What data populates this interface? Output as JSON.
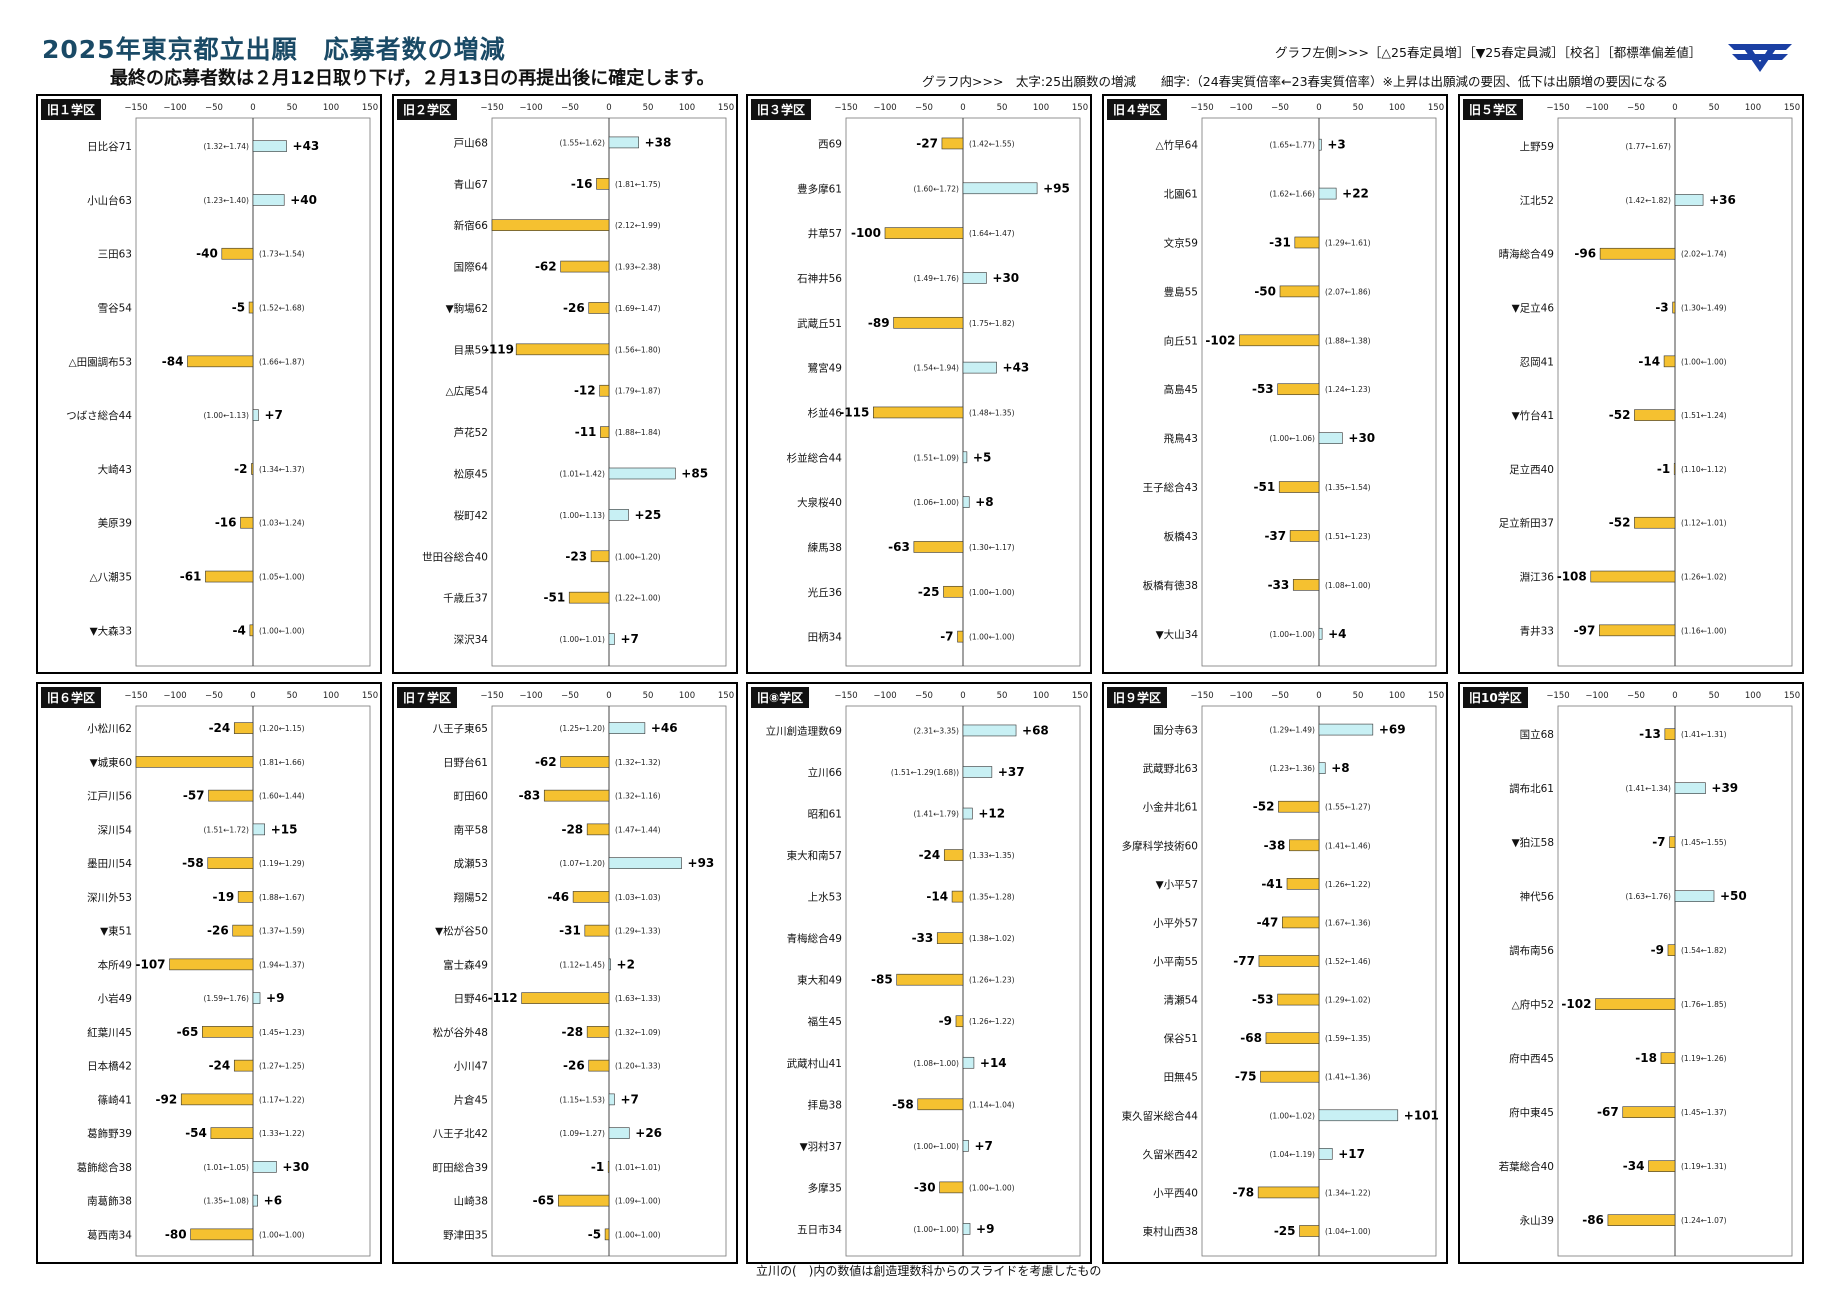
{
  "header": {
    "title": "2025年東京都立出願　応募者数の増減",
    "subtitle": "最終の応募者数は２月12日取り下げ，２月13日の再提出後に確定します。",
    "legend_line1": "グラフ左側>>>［△25春定員増］［▼25春定員減］［校名］［都標準偏差値］",
    "legend_line2": "グラフ内>>>　太字:25出願数の増減　　細字:（24春実質倍率←23春実質倍率）※上昇は出願減の要因、低下は出願増の要因になる"
  },
  "footnote": "立川の(　)内の数値は創造理数科からのスライドを考慮したもの",
  "colors": {
    "negative_bar": "#f5c130",
    "positive_bar": "#c8f0f4",
    "bar_border": "#333333",
    "title": "#1a4a66",
    "logo": "#1a3fa3"
  },
  "icons": {
    "logo": "logo-icon"
  },
  "chart_data": [
    {
      "type": "bar",
      "region": "旧１学区",
      "ticks": [
        -150,
        -100,
        -50,
        0,
        50,
        100,
        150
      ],
      "xlim": [
        -150,
        150
      ],
      "orientation": "horizontal",
      "items": [
        {
          "name": "日比谷71",
          "value": 43,
          "label": "+43",
          "ratio": "(1.32←1.74)"
        },
        {
          "name": "小山台63",
          "value": 40,
          "label": "+40",
          "ratio": "(1.23←1.40)"
        },
        {
          "name": "三田63",
          "value": -40,
          "label": "-40",
          "ratio": "(1.73←1.54)"
        },
        {
          "name": "雪谷54",
          "value": -5,
          "label": "-5",
          "ratio": "(1.52←1.68)"
        },
        {
          "name": "△田園調布53",
          "value": -84,
          "label": "-84",
          "ratio": "(1.66←1.87)"
        },
        {
          "name": "つばさ総合44",
          "value": 7,
          "label": "+7",
          "ratio": "(1.00←1.13)"
        },
        {
          "name": "大崎43",
          "value": -2,
          "label": "-2",
          "ratio": "(1.34←1.37)"
        },
        {
          "name": "美原39",
          "value": -16,
          "label": "-16",
          "ratio": "(1.03←1.24)"
        },
        {
          "name": "△八潮35",
          "value": -61,
          "label": "-61",
          "ratio": "(1.05←1.00)"
        },
        {
          "name": "▼大森33",
          "value": -4,
          "label": "-4",
          "ratio": "(1.00←1.00)"
        }
      ]
    },
    {
      "type": "bar",
      "region": "旧２学区",
      "ticks": [
        -150,
        -100,
        -50,
        0,
        50,
        100,
        150
      ],
      "xlim": [
        -150,
        150
      ],
      "orientation": "horizontal",
      "items": [
        {
          "name": "戸山68",
          "value": 38,
          "label": "+38",
          "ratio": "(1.55←1.62)"
        },
        {
          "name": "青山67",
          "value": -16,
          "label": "-16",
          "ratio": "(1.81←1.75)"
        },
        {
          "name": "新宿66",
          "value": -150,
          "label": "",
          "ratio": "(2.12←1.99)"
        },
        {
          "name": "国際64",
          "value": -62,
          "label": "-62",
          "ratio": "(1.93←2.38)"
        },
        {
          "name": "▼駒場62",
          "value": -26,
          "label": "-26",
          "ratio": "(1.69←1.47)"
        },
        {
          "name": "目黒59",
          "value": -119,
          "label": "-119",
          "ratio": "(1.56←1.80)"
        },
        {
          "name": "△広尾54",
          "value": -12,
          "label": "-12",
          "ratio": "(1.79←1.87)"
        },
        {
          "name": "芦花52",
          "value": -11,
          "label": "-11",
          "ratio": "(1.88←1.84)"
        },
        {
          "name": "松原45",
          "value": 85,
          "label": "+85",
          "ratio": "(1.01←1.42)"
        },
        {
          "name": "桜町42",
          "value": 25,
          "label": "+25",
          "ratio": "(1.00←1.13)"
        },
        {
          "name": "世田谷総合40",
          "value": -23,
          "label": "-23",
          "ratio": "(1.00←1.20)"
        },
        {
          "name": "千歳丘37",
          "value": -51,
          "label": "-51",
          "ratio": "(1.22←1.00)"
        },
        {
          "name": "深沢34",
          "value": 7,
          "label": "+7",
          "ratio": "(1.00←1.01)"
        }
      ]
    },
    {
      "type": "bar",
      "region": "旧３学区",
      "ticks": [
        -150,
        -100,
        -50,
        0,
        50,
        100,
        150
      ],
      "xlim": [
        -150,
        150
      ],
      "orientation": "horizontal",
      "items": [
        {
          "name": "西69",
          "value": -27,
          "label": "-27",
          "ratio": "(1.42←1.55)"
        },
        {
          "name": "豊多摩61",
          "value": 95,
          "label": "+95",
          "ratio": "(1.60←1.72)"
        },
        {
          "name": "井草57",
          "value": -100,
          "label": "-100",
          "ratio": "(1.64←1.47)"
        },
        {
          "name": "石神井56",
          "value": 30,
          "label": "+30",
          "ratio": "(1.49←1.76)"
        },
        {
          "name": "武蔵丘51",
          "value": -89,
          "label": "-89",
          "ratio": "(1.75←1.82)"
        },
        {
          "name": "鷺宮49",
          "value": 43,
          "label": "+43",
          "ratio": "(1.54←1.94)"
        },
        {
          "name": "杉並46",
          "value": -115,
          "label": "-115",
          "ratio": "(1.48←1.35)"
        },
        {
          "name": "杉並総合44",
          "value": 5,
          "label": "+5",
          "ratio": "(1.51←1.09)"
        },
        {
          "name": "大泉桜40",
          "value": 8,
          "label": "+8",
          "ratio": "(1.06←1.00)"
        },
        {
          "name": "練馬38",
          "value": -63,
          "label": "-63",
          "ratio": "(1.30←1.17)"
        },
        {
          "name": "光丘36",
          "value": -25,
          "label": "-25",
          "ratio": "(1.00←1.00)"
        },
        {
          "name": "田柄34",
          "value": -7,
          "label": "-7",
          "ratio": "(1.00←1.00)"
        }
      ]
    },
    {
      "type": "bar",
      "region": "旧４学区",
      "ticks": [
        -150,
        -100,
        -50,
        0,
        50,
        100,
        150
      ],
      "xlim": [
        -150,
        150
      ],
      "orientation": "horizontal",
      "items": [
        {
          "name": "△竹早64",
          "value": 3,
          "label": "+3",
          "ratio": "(1.65←1.77)"
        },
        {
          "name": "北園61",
          "value": 22,
          "label": "+22",
          "ratio": "(1.62←1.66)"
        },
        {
          "name": "文京59",
          "value": -31,
          "label": "-31",
          "ratio": "(1.29←1.61)"
        },
        {
          "name": "豊島55",
          "value": -50,
          "label": "-50",
          "ratio": "(2.07←1.86)"
        },
        {
          "name": "向丘51",
          "value": -102,
          "label": "-102",
          "ratio": "(1.88←1.38)"
        },
        {
          "name": "高島45",
          "value": -53,
          "label": "-53",
          "ratio": "(1.24←1.23)"
        },
        {
          "name": "飛鳥43",
          "value": 30,
          "label": "+30",
          "ratio": "(1.00←1.06)"
        },
        {
          "name": "王子総合43",
          "value": -51,
          "label": "-51",
          "ratio": "(1.35←1.54)"
        },
        {
          "name": "板橋43",
          "value": -37,
          "label": "-37",
          "ratio": "(1.51←1.23)"
        },
        {
          "name": "板橋有徳38",
          "value": -33,
          "label": "-33",
          "ratio": "(1.08←1.00)"
        },
        {
          "name": "▼大山34",
          "value": 4,
          "label": "+4",
          "ratio": "(1.00←1.00)"
        }
      ]
    },
    {
      "type": "bar",
      "region": "旧５学区",
      "ticks": [
        -150,
        -100,
        -50,
        0,
        50,
        100,
        150
      ],
      "xlim": [
        -150,
        150
      ],
      "orientation": "horizontal",
      "items": [
        {
          "name": "上野59",
          "value": 0,
          "label": "",
          "ratio": "(1.77←1.67)"
        },
        {
          "name": "江北52",
          "value": 36,
          "label": "+36",
          "ratio": "(1.42←1.82)"
        },
        {
          "name": "晴海総合49",
          "value": -96,
          "label": "-96",
          "ratio": "(2.02←1.74)"
        },
        {
          "name": "▼足立46",
          "value": -3,
          "label": "-3",
          "ratio": "(1.30←1.49)"
        },
        {
          "name": "忍岡41",
          "value": -14,
          "label": "-14",
          "ratio": "(1.00←1.00)"
        },
        {
          "name": "▼竹台41",
          "value": -52,
          "label": "-52",
          "ratio": "(1.51←1.24)"
        },
        {
          "name": "足立西40",
          "value": -1,
          "label": "-1",
          "ratio": "(1.10←1.12)"
        },
        {
          "name": "足立新田37",
          "value": -52,
          "label": "-52",
          "ratio": "(1.12←1.01)"
        },
        {
          "name": "淵江36",
          "value": -108,
          "label": "-108",
          "ratio": "(1.26←1.02)"
        },
        {
          "name": "青井33",
          "value": -97,
          "label": "-97",
          "ratio": "(1.16←1.00)"
        }
      ]
    },
    {
      "type": "bar",
      "region": "旧６学区",
      "ticks": [
        -150,
        -100,
        -50,
        0,
        50,
        100,
        150
      ],
      "xlim": [
        -150,
        150
      ],
      "orientation": "horizontal",
      "items": [
        {
          "name": "小松川62",
          "value": -24,
          "label": "-24",
          "ratio": "(1.20←1.15)"
        },
        {
          "name": "▼城東60",
          "value": -150,
          "label": "",
          "ratio": "(1.81←1.66)"
        },
        {
          "name": "江戸川56",
          "value": -57,
          "label": "-57",
          "ratio": "(1.60←1.44)"
        },
        {
          "name": "深川54",
          "value": 15,
          "label": "+15",
          "ratio": "(1.51←1.72)"
        },
        {
          "name": "墨田川54",
          "value": -58,
          "label": "-58",
          "ratio": "(1.19←1.29)"
        },
        {
          "name": "深川外53",
          "value": -19,
          "label": "-19",
          "ratio": "(1.88←1.67)"
        },
        {
          "name": "▼東51",
          "value": -26,
          "label": "-26",
          "ratio": "(1.37←1.59)"
        },
        {
          "name": "本所49",
          "value": -107,
          "label": "-107",
          "ratio": "(1.94←1.37)"
        },
        {
          "name": "小岩49",
          "value": 9,
          "label": "+9",
          "ratio": "(1.59←1.76)"
        },
        {
          "name": "紅葉川45",
          "value": -65,
          "label": "-65",
          "ratio": "(1.45←1.23)"
        },
        {
          "name": "日本橋42",
          "value": -24,
          "label": "-24",
          "ratio": "(1.27←1.25)"
        },
        {
          "name": "篠崎41",
          "value": -92,
          "label": "-92",
          "ratio": "(1.17←1.22)"
        },
        {
          "name": "葛飾野39",
          "value": -54,
          "label": "-54",
          "ratio": "(1.33←1.22)"
        },
        {
          "name": "葛飾総合38",
          "value": 30,
          "label": "+30",
          "ratio": "(1.01←1.05)"
        },
        {
          "name": "南葛飾38",
          "value": 6,
          "label": "+6",
          "ratio": "(1.35←1.08)"
        },
        {
          "name": "葛西南34",
          "value": -80,
          "label": "-80",
          "ratio": "(1.00←1.00)"
        }
      ]
    },
    {
      "type": "bar",
      "region": "旧７学区",
      "ticks": [
        -150,
        -100,
        -50,
        0,
        50,
        100,
        150
      ],
      "xlim": [
        -150,
        150
      ],
      "orientation": "horizontal",
      "items": [
        {
          "name": "八王子東65",
          "value": 46,
          "label": "+46",
          "ratio": "(1.25←1.20)"
        },
        {
          "name": "日野台61",
          "value": -62,
          "label": "-62",
          "ratio": "(1.32←1.32)"
        },
        {
          "name": "町田60",
          "value": -83,
          "label": "-83",
          "ratio": "(1.32←1.16)"
        },
        {
          "name": "南平58",
          "value": -28,
          "label": "-28",
          "ratio": "(1.47←1.44)"
        },
        {
          "name": "成瀬53",
          "value": 93,
          "label": "+93",
          "ratio": "(1.07←1.20)"
        },
        {
          "name": "翔陽52",
          "value": -46,
          "label": "-46",
          "ratio": "(1.03←1.03)"
        },
        {
          "name": "▼松が谷50",
          "value": -31,
          "label": "-31",
          "ratio": "(1.29←1.33)"
        },
        {
          "name": "富士森49",
          "value": 2,
          "label": "+2",
          "ratio": "(1.12←1.45)"
        },
        {
          "name": "日野46",
          "value": -112,
          "label": "-112",
          "ratio": "(1.63←1.33)"
        },
        {
          "name": "松が谷外48",
          "value": -28,
          "label": "-28",
          "ratio": "(1.32←1.09)"
        },
        {
          "name": "小川47",
          "value": -26,
          "label": "-26",
          "ratio": "(1.20←1.33)"
        },
        {
          "name": "片倉45",
          "value": 7,
          "label": "+7",
          "ratio": "(1.15←1.53)"
        },
        {
          "name": "八王子北42",
          "value": 26,
          "label": "+26",
          "ratio": "(1.09←1.27)"
        },
        {
          "name": "町田総合39",
          "value": -1,
          "label": "-1",
          "ratio": "(1.01←1.01)"
        },
        {
          "name": "山崎38",
          "value": -65,
          "label": "-65",
          "ratio": "(1.09←1.00)"
        },
        {
          "name": "野津田35",
          "value": -5,
          "label": "-5",
          "ratio": "(1.00←1.00)"
        }
      ]
    },
    {
      "type": "bar",
      "region": "旧⑧学区",
      "ticks": [
        -150,
        -100,
        -50,
        0,
        50,
        100,
        150
      ],
      "xlim": [
        -150,
        150
      ],
      "orientation": "horizontal",
      "items": [
        {
          "name": "立川創造理数69",
          "value": 68,
          "label": "+68",
          "ratio": "(2.31←3.35)"
        },
        {
          "name": "立川66",
          "value": 37,
          "label": "+37",
          "ratio": "(1.51←1.29(1.68))"
        },
        {
          "name": "昭和61",
          "value": 12,
          "label": "+12",
          "ratio": "(1.41←1.79)"
        },
        {
          "name": "東大和南57",
          "value": -24,
          "label": "-24",
          "ratio": "(1.33←1.35)"
        },
        {
          "name": "上水53",
          "value": -14,
          "label": "-14",
          "ratio": "(1.35←1.28)"
        },
        {
          "name": "青梅総合49",
          "value": -33,
          "label": "-33",
          "ratio": "(1.38←1.02)"
        },
        {
          "name": "東大和49",
          "value": -85,
          "label": "-85",
          "ratio": "(1.26←1.23)"
        },
        {
          "name": "福生45",
          "value": -9,
          "label": "-9",
          "ratio": "(1.26←1.22)"
        },
        {
          "name": "武蔵村山41",
          "value": 14,
          "label": "+14",
          "ratio": "(1.08←1.00)"
        },
        {
          "name": "拝島38",
          "value": -58,
          "label": "-58",
          "ratio": "(1.14←1.04)"
        },
        {
          "name": "▼羽村37",
          "value": 7,
          "label": "+7",
          "ratio": "(1.00←1.00)"
        },
        {
          "name": "多摩35",
          "value": -30,
          "label": "-30",
          "ratio": "(1.00←1.00)"
        },
        {
          "name": "五日市34",
          "value": 9,
          "label": "+9",
          "ratio": "(1.00←1.00)"
        }
      ]
    },
    {
      "type": "bar",
      "region": "旧９学区",
      "ticks": [
        -150,
        -100,
        -50,
        0,
        50,
        100,
        150
      ],
      "xlim": [
        -150,
        150
      ],
      "orientation": "horizontal",
      "items": [
        {
          "name": "国分寺63",
          "value": 69,
          "label": "+69",
          "ratio": "(1.29←1.49)"
        },
        {
          "name": "武蔵野北63",
          "value": 8,
          "label": "+8",
          "ratio": "(1.23←1.36)"
        },
        {
          "name": "小金井北61",
          "value": -52,
          "label": "-52",
          "ratio": "(1.55←1.27)"
        },
        {
          "name": "多摩科学技術60",
          "value": -38,
          "label": "-38",
          "ratio": "(1.41←1.46)"
        },
        {
          "name": "▼小平57",
          "value": -41,
          "label": "-41",
          "ratio": "(1.26←1.22)"
        },
        {
          "name": "小平外57",
          "value": -47,
          "label": "-47",
          "ratio": "(1.67←1.36)"
        },
        {
          "name": "小平南55",
          "value": -77,
          "label": "-77",
          "ratio": "(1.52←1.46)"
        },
        {
          "name": "清瀬54",
          "value": -53,
          "label": "-53",
          "ratio": "(1.29←1.02)"
        },
        {
          "name": "保谷51",
          "value": -68,
          "label": "-68",
          "ratio": "(1.59←1.35)"
        },
        {
          "name": "田無45",
          "value": -75,
          "label": "-75",
          "ratio": "(1.41←1.36)"
        },
        {
          "name": "東久留米総合44",
          "value": 101,
          "label": "+101",
          "ratio": "(1.00←1.02)"
        },
        {
          "name": "久留米西42",
          "value": 17,
          "label": "+17",
          "ratio": "(1.04←1.19)"
        },
        {
          "name": "小平西40",
          "value": -78,
          "label": "-78",
          "ratio": "(1.34←1.22)"
        },
        {
          "name": "東村山西38",
          "value": -25,
          "label": "-25",
          "ratio": "(1.04←1.00)"
        }
      ]
    },
    {
      "type": "bar",
      "region": "旧10学区",
      "ticks": [
        -150,
        -100,
        -50,
        0,
        50,
        100,
        150
      ],
      "xlim": [
        -150,
        150
      ],
      "orientation": "horizontal",
      "items": [
        {
          "name": "国立68",
          "value": -13,
          "label": "-13",
          "ratio": "(1.41←1.31)"
        },
        {
          "name": "調布北61",
          "value": 39,
          "label": "+39",
          "ratio": "(1.41←1.34)"
        },
        {
          "name": "▼狛江58",
          "value": -7,
          "label": "-7",
          "ratio": "(1.45←1.55)"
        },
        {
          "name": "神代56",
          "value": 50,
          "label": "+50",
          "ratio": "(1.63←1.76)"
        },
        {
          "name": "調布南56",
          "value": -9,
          "label": "-9",
          "ratio": "(1.54←1.82)"
        },
        {
          "name": "△府中52",
          "value": -102,
          "label": "-102",
          "ratio": "(1.76←1.85)"
        },
        {
          "name": "府中西45",
          "value": -18,
          "label": "-18",
          "ratio": "(1.19←1.26)"
        },
        {
          "name": "府中東45",
          "value": -67,
          "label": "-67",
          "ratio": "(1.45←1.37)"
        },
        {
          "name": "若葉総合40",
          "value": -34,
          "label": "-34",
          "ratio": "(1.19←1.31)"
        },
        {
          "name": "永山39",
          "value": -86,
          "label": "-86",
          "ratio": "(1.24←1.07)"
        }
      ]
    }
  ]
}
